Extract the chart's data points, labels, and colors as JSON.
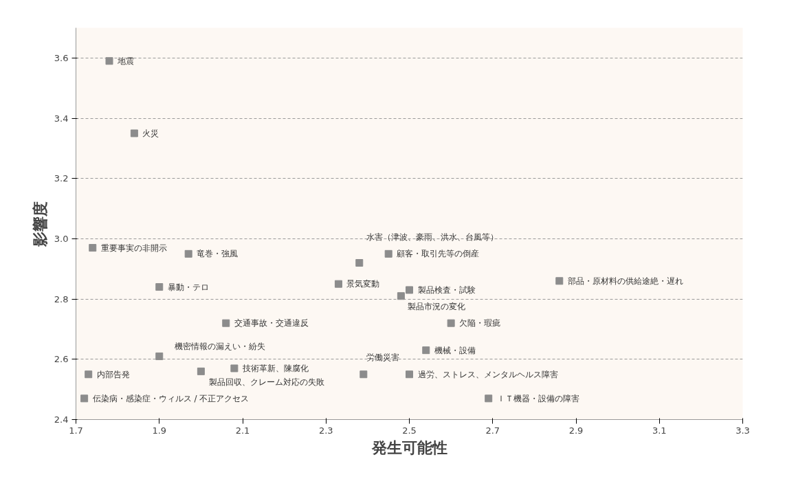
{
  "chart_data": {
    "type": "scatter",
    "xlabel": "発生可能性",
    "ylabel": "影響度",
    "x": [
      1.78,
      1.84,
      1.74,
      1.97,
      1.9,
      2.06,
      1.9,
      1.73,
      2.0,
      2.08,
      1.72,
      2.38,
      2.45,
      2.33,
      2.5,
      2.48,
      2.86,
      2.6,
      2.54,
      2.39,
      2.5,
      2.69
    ],
    "series": [
      {
        "color": "#8c8c8c",
        "values": [
          3.59,
          3.35,
          2.97,
          2.95,
          2.84,
          2.72,
          2.61,
          2.55,
          2.56,
          2.57,
          2.47,
          2.92,
          2.95,
          2.85,
          2.83,
          2.81,
          2.86,
          2.72,
          2.63,
          2.55,
          2.55,
          2.47
        ]
      }
    ],
    "marker": "square",
    "grid": "y",
    "xlim": [
      1.7,
      3.3
    ],
    "xticks": [
      1.7,
      1.9,
      2.1,
      2.3,
      2.5,
      2.7,
      2.9,
      3.1,
      3.3
    ],
    "ylim": [
      2.4,
      3.7
    ],
    "yticks": [
      2.4,
      2.6,
      2.8,
      {
        "value": 3.0,
        "label": "3.0"
      },
      3.2,
      3.4,
      3.6
    ],
    "annotations": [
      {
        "text": "地震",
        "x": 1.78,
        "y": 3.59
      },
      {
        "text": "火災",
        "x": 1.84,
        "y": 3.35
      },
      {
        "text": "重要事実の非開示",
        "x": 1.74,
        "y": 2.97
      },
      {
        "text": "竜巻・強風",
        "x": 1.97,
        "y": 2.95
      },
      {
        "text": "暴動・テロ",
        "x": 1.9,
        "y": 2.84
      },
      {
        "text": "交通事故・交通違反",
        "x": 2.06,
        "y": 2.72
      },
      {
        "text": "機密情報の漏えい・紛失",
        "x": 1.9,
        "y": 2.61
      },
      {
        "text": "内部告発",
        "x": 1.73,
        "y": 2.55
      },
      {
        "text": "製品回収、クレーム対応の失敗",
        "x": 2.0,
        "y": 2.56
      },
      {
        "text": "技術革新、陳腐化",
        "x": 2.08,
        "y": 2.57
      },
      {
        "text": "伝染病・感染症・ウィルス / 不正アクセス",
        "x": 1.72,
        "y": 2.47
      },
      {
        "text": "水害（津波、豪雨、洪水、台風等）",
        "x": 2.38,
        "y": 2.92
      },
      {
        "text": "顧客・取引先等の倒産",
        "x": 2.45,
        "y": 2.95
      },
      {
        "text": "景気変動",
        "x": 2.33,
        "y": 2.85
      },
      {
        "text": "製品検査・試験",
        "x": 2.5,
        "y": 2.83
      },
      {
        "text": "製品市況の変化",
        "x": 2.48,
        "y": 2.81
      },
      {
        "text": "部品・原材料の供給途絶・遅れ",
        "x": 2.86,
        "y": 2.86
      },
      {
        "text": "欠陥・瑕疵",
        "x": 2.6,
        "y": 2.72
      },
      {
        "text": "機械・設備",
        "x": 2.54,
        "y": 2.63
      },
      {
        "text": "労働災害",
        "x": 2.39,
        "y": 2.55
      },
      {
        "text": "過労、ストレス、メンタルヘルス障害",
        "x": 2.5,
        "y": 2.55
      },
      {
        "text": "ＩＴ機器・設備の障害",
        "x": 2.69,
        "y": 2.47
      }
    ]
  }
}
